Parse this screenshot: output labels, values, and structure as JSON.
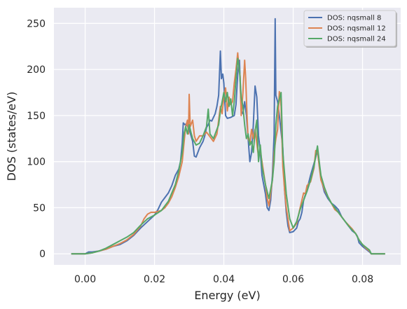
{
  "chart_data": {
    "type": "line",
    "title": "",
    "xlabel": "Energy (eV)",
    "ylabel": "DOS (states/eV)",
    "xlim": [
      -0.009,
      0.091
    ],
    "ylim": [
      -12,
      267
    ],
    "x_ticks": [
      0.0,
      0.02,
      0.04,
      0.06,
      0.08
    ],
    "x_tick_labels": [
      "0.00",
      "0.02",
      "0.04",
      "0.06",
      "0.08"
    ],
    "y_ticks": [
      0,
      50,
      100,
      150,
      200,
      250
    ],
    "y_tick_labels": [
      "0",
      "50",
      "100",
      "150",
      "200",
      "250"
    ],
    "grid": true,
    "legend_position": "top-right",
    "series": [
      {
        "name": "DOS: nqsmall 8",
        "color": "#4c72b0",
        "points": [
          [
            -0.004,
            0
          ],
          [
            0.0,
            0
          ],
          [
            0.001,
            2
          ],
          [
            0.002,
            2
          ],
          [
            0.004,
            3
          ],
          [
            0.006,
            5
          ],
          [
            0.008,
            8
          ],
          [
            0.01,
            10
          ],
          [
            0.012,
            14
          ],
          [
            0.014,
            20
          ],
          [
            0.016,
            28
          ],
          [
            0.018,
            35
          ],
          [
            0.02,
            42
          ],
          [
            0.021,
            48
          ],
          [
            0.022,
            56
          ],
          [
            0.023,
            61
          ],
          [
            0.024,
            66
          ],
          [
            0.025,
            74
          ],
          [
            0.026,
            85
          ],
          [
            0.027,
            92
          ],
          [
            0.0275,
            100
          ],
          [
            0.028,
            120
          ],
          [
            0.0283,
            142
          ],
          [
            0.0288,
            140
          ],
          [
            0.0292,
            141
          ],
          [
            0.03,
            135
          ],
          [
            0.031,
            122
          ],
          [
            0.0315,
            106
          ],
          [
            0.032,
            105
          ],
          [
            0.033,
            115
          ],
          [
            0.034,
            122
          ],
          [
            0.0345,
            128
          ],
          [
            0.035,
            137
          ],
          [
            0.0355,
            140
          ],
          [
            0.036,
            145
          ],
          [
            0.0365,
            144
          ],
          [
            0.037,
            148
          ],
          [
            0.0375,
            152
          ],
          [
            0.038,
            160
          ],
          [
            0.0385,
            172
          ],
          [
            0.039,
            220
          ],
          [
            0.0393,
            190
          ],
          [
            0.0397,
            195
          ],
          [
            0.04,
            185
          ],
          [
            0.0405,
            150
          ],
          [
            0.041,
            147
          ],
          [
            0.042,
            148
          ],
          [
            0.043,
            150
          ],
          [
            0.0435,
            162
          ],
          [
            0.044,
            195
          ],
          [
            0.0445,
            210
          ],
          [
            0.045,
            155
          ],
          [
            0.0455,
            152
          ],
          [
            0.046,
            165
          ],
          [
            0.0465,
            150
          ],
          [
            0.047,
            125
          ],
          [
            0.0475,
            100
          ],
          [
            0.048,
            110
          ],
          [
            0.0485,
            140
          ],
          [
            0.049,
            182
          ],
          [
            0.0495,
            170
          ],
          [
            0.05,
            128
          ],
          [
            0.0505,
            112
          ],
          [
            0.051,
            85
          ],
          [
            0.052,
            65
          ],
          [
            0.0525,
            50
          ],
          [
            0.053,
            47
          ],
          [
            0.0535,
            58
          ],
          [
            0.054,
            85
          ],
          [
            0.0545,
            130
          ],
          [
            0.0548,
            255
          ],
          [
            0.055,
            172
          ],
          [
            0.0555,
            165
          ],
          [
            0.056,
            150
          ],
          [
            0.057,
            115
          ],
          [
            0.0575,
            70
          ],
          [
            0.058,
            45
          ],
          [
            0.0585,
            30
          ],
          [
            0.059,
            23
          ],
          [
            0.06,
            24
          ],
          [
            0.061,
            28
          ],
          [
            0.0615,
            35
          ],
          [
            0.062,
            38
          ],
          [
            0.0625,
            45
          ],
          [
            0.063,
            58
          ],
          [
            0.064,
            70
          ],
          [
            0.065,
            85
          ],
          [
            0.066,
            98
          ],
          [
            0.067,
            112
          ],
          [
            0.0675,
            97
          ],
          [
            0.068,
            82
          ],
          [
            0.069,
            67
          ],
          [
            0.07,
            60
          ],
          [
            0.071,
            55
          ],
          [
            0.072,
            52
          ],
          [
            0.073,
            48
          ],
          [
            0.074,
            40
          ],
          [
            0.075,
            35
          ],
          [
            0.076,
            30
          ],
          [
            0.077,
            25
          ],
          [
            0.078,
            22
          ],
          [
            0.0785,
            19
          ],
          [
            0.079,
            12
          ],
          [
            0.08,
            8
          ],
          [
            0.081,
            5
          ],
          [
            0.082,
            2
          ],
          [
            0.0825,
            0
          ],
          [
            0.0865,
            0
          ]
        ]
      },
      {
        "name": "DOS: nqsmall 12",
        "color": "#dd8452",
        "points": [
          [
            -0.004,
            0
          ],
          [
            0.0,
            0
          ],
          [
            0.002,
            1
          ],
          [
            0.004,
            3
          ],
          [
            0.006,
            5
          ],
          [
            0.008,
            8
          ],
          [
            0.01,
            11
          ],
          [
            0.012,
            15
          ],
          [
            0.014,
            21
          ],
          [
            0.016,
            30
          ],
          [
            0.017,
            38
          ],
          [
            0.018,
            43
          ],
          [
            0.019,
            45
          ],
          [
            0.02,
            45
          ],
          [
            0.021,
            46
          ],
          [
            0.022,
            47
          ],
          [
            0.023,
            50
          ],
          [
            0.024,
            55
          ],
          [
            0.025,
            62
          ],
          [
            0.026,
            72
          ],
          [
            0.027,
            84
          ],
          [
            0.028,
            100
          ],
          [
            0.0285,
            120
          ],
          [
            0.029,
            138
          ],
          [
            0.0295,
            145
          ],
          [
            0.0298,
            130
          ],
          [
            0.03,
            173
          ],
          [
            0.0303,
            138
          ],
          [
            0.031,
            145
          ],
          [
            0.0315,
            128
          ],
          [
            0.032,
            122
          ],
          [
            0.033,
            128
          ],
          [
            0.034,
            128
          ],
          [
            0.035,
            132
          ],
          [
            0.036,
            127
          ],
          [
            0.037,
            122
          ],
          [
            0.038,
            130
          ],
          [
            0.0385,
            145
          ],
          [
            0.039,
            160
          ],
          [
            0.0395,
            152
          ],
          [
            0.04,
            170
          ],
          [
            0.0405,
            180
          ],
          [
            0.041,
            155
          ],
          [
            0.0415,
            170
          ],
          [
            0.042,
            162
          ],
          [
            0.0425,
            165
          ],
          [
            0.043,
            185
          ],
          [
            0.0435,
            200
          ],
          [
            0.044,
            218
          ],
          [
            0.0443,
            205
          ],
          [
            0.0447,
            192
          ],
          [
            0.045,
            150
          ],
          [
            0.0455,
            175
          ],
          [
            0.046,
            210
          ],
          [
            0.0463,
            190
          ],
          [
            0.0467,
            148
          ],
          [
            0.047,
            125
          ],
          [
            0.0475,
            120
          ],
          [
            0.048,
            135
          ],
          [
            0.0485,
            125
          ],
          [
            0.049,
            135
          ],
          [
            0.0495,
            120
          ],
          [
            0.05,
            105
          ],
          [
            0.0505,
            112
          ],
          [
            0.051,
            100
          ],
          [
            0.052,
            75
          ],
          [
            0.0525,
            60
          ],
          [
            0.053,
            52
          ],
          [
            0.054,
            80
          ],
          [
            0.0545,
            110
          ],
          [
            0.055,
            125
          ],
          [
            0.0555,
            135
          ],
          [
            0.056,
            176
          ],
          [
            0.0565,
            160
          ],
          [
            0.057,
            95
          ],
          [
            0.0575,
            70
          ],
          [
            0.058,
            50
          ],
          [
            0.059,
            25
          ],
          [
            0.06,
            28
          ],
          [
            0.061,
            33
          ],
          [
            0.062,
            50
          ],
          [
            0.063,
            66
          ],
          [
            0.0635,
            65
          ],
          [
            0.064,
            74
          ],
          [
            0.065,
            78
          ],
          [
            0.066,
            93
          ],
          [
            0.0665,
            112
          ],
          [
            0.067,
            112
          ],
          [
            0.0675,
            95
          ],
          [
            0.068,
            80
          ],
          [
            0.069,
            70
          ],
          [
            0.07,
            62
          ],
          [
            0.071,
            55
          ],
          [
            0.072,
            48
          ],
          [
            0.073,
            45
          ],
          [
            0.074,
            40
          ],
          [
            0.075,
            35
          ],
          [
            0.076,
            31
          ],
          [
            0.077,
            27
          ],
          [
            0.078,
            22
          ],
          [
            0.079,
            15
          ],
          [
            0.08,
            10
          ],
          [
            0.081,
            6
          ],
          [
            0.082,
            3
          ],
          [
            0.0825,
            0
          ],
          [
            0.0865,
            0
          ]
        ]
      },
      {
        "name": "DOS: nqsmall 24",
        "color": "#55a868",
        "points": [
          [
            -0.004,
            0
          ],
          [
            0.0,
            0
          ],
          [
            0.002,
            1
          ],
          [
            0.004,
            3
          ],
          [
            0.006,
            6
          ],
          [
            0.008,
            10
          ],
          [
            0.01,
            14
          ],
          [
            0.012,
            18
          ],
          [
            0.014,
            23
          ],
          [
            0.016,
            31
          ],
          [
            0.018,
            38
          ],
          [
            0.02,
            42
          ],
          [
            0.022,
            47
          ],
          [
            0.024,
            57
          ],
          [
            0.026,
            75
          ],
          [
            0.027,
            90
          ],
          [
            0.028,
            110
          ],
          [
            0.0285,
            130
          ],
          [
            0.029,
            138
          ],
          [
            0.0295,
            130
          ],
          [
            0.03,
            140
          ],
          [
            0.0305,
            132
          ],
          [
            0.031,
            125
          ],
          [
            0.032,
            118
          ],
          [
            0.033,
            120
          ],
          [
            0.034,
            128
          ],
          [
            0.035,
            138
          ],
          [
            0.0355,
            157
          ],
          [
            0.036,
            130
          ],
          [
            0.037,
            125
          ],
          [
            0.038,
            135
          ],
          [
            0.0385,
            140
          ],
          [
            0.039,
            155
          ],
          [
            0.0395,
            165
          ],
          [
            0.04,
            175
          ],
          [
            0.0405,
            165
          ],
          [
            0.041,
            175
          ],
          [
            0.0415,
            160
          ],
          [
            0.042,
            168
          ],
          [
            0.0425,
            150
          ],
          [
            0.043,
            165
          ],
          [
            0.0435,
            190
          ],
          [
            0.044,
            212
          ],
          [
            0.0445,
            200
          ],
          [
            0.045,
            170
          ],
          [
            0.0455,
            160
          ],
          [
            0.046,
            140
          ],
          [
            0.0465,
            125
          ],
          [
            0.047,
            130
          ],
          [
            0.0475,
            118
          ],
          [
            0.048,
            122
          ],
          [
            0.0485,
            110
          ],
          [
            0.049,
            133
          ],
          [
            0.0495,
            145
          ],
          [
            0.05,
            100
          ],
          [
            0.0505,
            118
          ],
          [
            0.051,
            95
          ],
          [
            0.052,
            75
          ],
          [
            0.053,
            60
          ],
          [
            0.054,
            80
          ],
          [
            0.0545,
            100
          ],
          [
            0.055,
            140
          ],
          [
            0.0555,
            160
          ],
          [
            0.056,
            168
          ],
          [
            0.0565,
            175
          ],
          [
            0.057,
            110
          ],
          [
            0.058,
            65
          ],
          [
            0.059,
            38
          ],
          [
            0.06,
            28
          ],
          [
            0.061,
            35
          ],
          [
            0.062,
            48
          ],
          [
            0.063,
            58
          ],
          [
            0.064,
            68
          ],
          [
            0.065,
            80
          ],
          [
            0.066,
            95
          ],
          [
            0.067,
            117
          ],
          [
            0.0675,
            100
          ],
          [
            0.068,
            85
          ],
          [
            0.069,
            72
          ],
          [
            0.07,
            62
          ],
          [
            0.071,
            55
          ],
          [
            0.072,
            50
          ],
          [
            0.073,
            45
          ],
          [
            0.074,
            40
          ],
          [
            0.075,
            35
          ],
          [
            0.076,
            30
          ],
          [
            0.077,
            26
          ],
          [
            0.078,
            22
          ],
          [
            0.079,
            15
          ],
          [
            0.08,
            10
          ],
          [
            0.081,
            7
          ],
          [
            0.082,
            4
          ],
          [
            0.0825,
            0
          ],
          [
            0.0865,
            0
          ]
        ]
      }
    ]
  }
}
